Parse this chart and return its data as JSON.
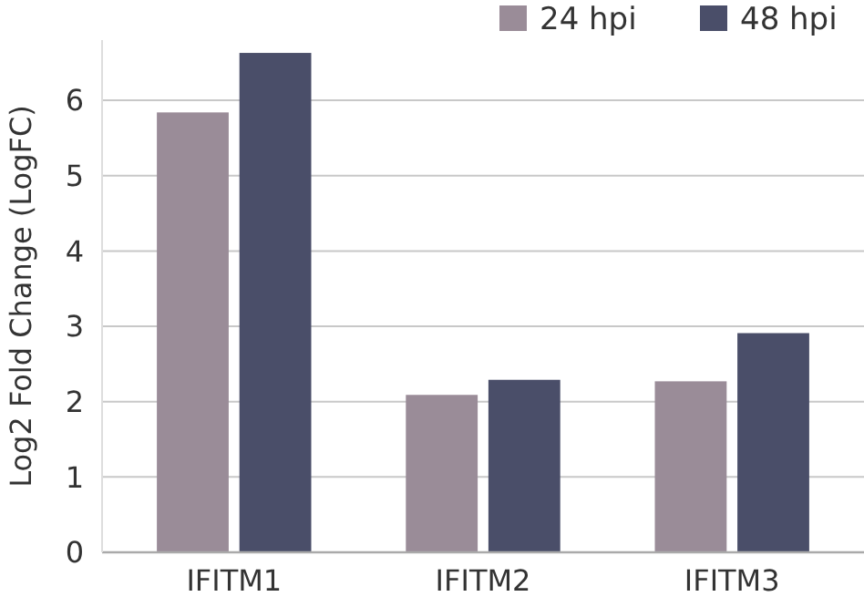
{
  "chart_data": {
    "type": "bar",
    "ylabel": "Log2 Fold Change (LogFC)",
    "categories": [
      "IFITM1",
      "IFITM2",
      "IFITM3"
    ],
    "series": [
      {
        "name": "24 hpi",
        "color": "#9a8c98",
        "values": [
          5.84,
          2.09,
          2.27
        ]
      },
      {
        "name": "48 hpi",
        "color": "#4a4e69",
        "values": [
          6.63,
          2.29,
          2.91
        ]
      }
    ],
    "ylim": [
      0,
      6.8
    ],
    "yticks": [
      0,
      1,
      2,
      3,
      4,
      5,
      6
    ],
    "grid": "y",
    "legend": "top right"
  }
}
